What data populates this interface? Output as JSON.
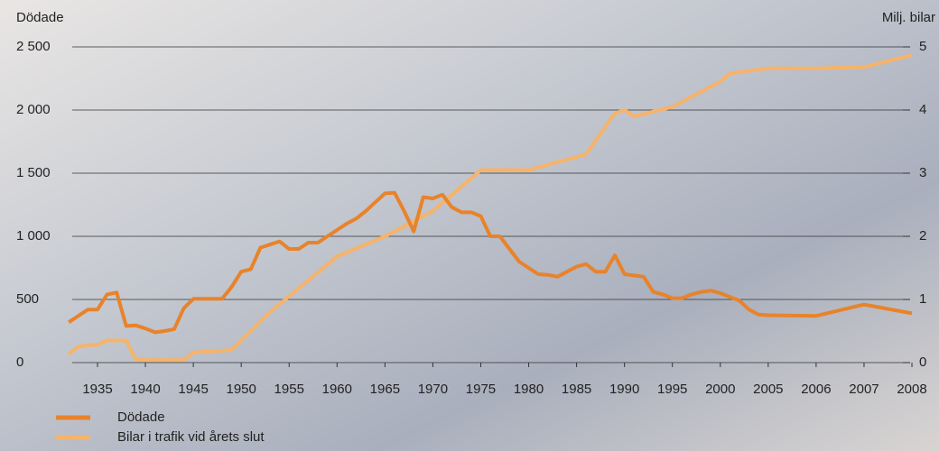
{
  "chart_data": {
    "type": "line",
    "y_label": "Dödade",
    "y2_label": "Milj. bilar",
    "xticks": [
      1935,
      1940,
      1945,
      1950,
      1955,
      1960,
      1965,
      1970,
      1975,
      1980,
      1985,
      1990,
      1995,
      2000,
      2005,
      2006,
      2007,
      2008
    ],
    "ylim": [
      0,
      2500
    ],
    "yticks": [
      0,
      500,
      {
        "value": 1000,
        "label": "1 000"
      },
      {
        "value": 1500,
        "label": "1 500"
      },
      {
        "value": 2000,
        "label": "2 000"
      },
      {
        "value": 2500,
        "label": "2 500"
      }
    ],
    "y2lim": [
      0,
      5
    ],
    "y2ticks": [
      0,
      1,
      2,
      3,
      4,
      5
    ],
    "grid": true,
    "legend": "bottom-left",
    "series": [
      {
        "name": "Dödade",
        "color": "#e8832a",
        "x": [
          1932,
          1933,
          1934,
          1935,
          1936,
          1937,
          1938,
          1939,
          1940,
          1941,
          1942,
          1943,
          1944,
          1945,
          1946,
          1947,
          1948,
          1949,
          1950,
          1951,
          1952,
          1953,
          1954,
          1955,
          1956,
          1957,
          1958,
          1959,
          1960,
          1961,
          1962,
          1963,
          1964,
          1965,
          1966,
          1967,
          1968,
          1969,
          1970,
          1971,
          1972,
          1973,
          1974,
          1975,
          1976,
          1977,
          1978,
          1979,
          1980,
          1981,
          1982,
          1983,
          1984,
          1985,
          1986,
          1987,
          1988,
          1989,
          1990,
          1991,
          1992,
          1993,
          1994,
          1995,
          1996,
          1997,
          1998,
          1999,
          2000,
          2001,
          2002,
          2003,
          2004,
          2005,
          2006,
          2007,
          2008
        ],
        "values": [
          320,
          370,
          420,
          420,
          540,
          555,
          290,
          295,
          270,
          240,
          250,
          265,
          430,
          505,
          505,
          505,
          505,
          600,
          720,
          740,
          910,
          935,
          960,
          900,
          900,
          950,
          950,
          1000,
          1050,
          1100,
          1140,
          1200,
          1270,
          1340,
          1345,
          1200,
          1040,
          1310,
          1300,
          1330,
          1230,
          1190,
          1190,
          1160,
          1000,
          1000,
          900,
          800,
          750,
          700,
          695,
          680,
          720,
          760,
          780,
          720,
          720,
          850,
          700,
          690,
          680,
          560,
          540,
          510,
          510,
          540,
          560,
          570,
          550,
          520,
          490,
          420,
          380,
          375,
          370,
          460,
          390
        ]
      },
      {
        "name": "Bilar i trafik vid årets slut",
        "color": "#f6b36a",
        "axis": "y2",
        "x": [
          1932,
          1933,
          1934,
          1935,
          1936,
          1937,
          1938,
          1939,
          1940,
          1944,
          1945,
          1948,
          1949,
          1950,
          1952,
          1953,
          1955,
          1960,
          1965,
          1970,
          1975,
          1980,
          1986,
          1989,
          1990,
          1991,
          1995,
          2000,
          2001,
          2005,
          2006,
          2007,
          2008
        ],
        "values": [
          0.14,
          0.25,
          0.28,
          0.28,
          0.35,
          0.35,
          0.35,
          0.05,
          0.04,
          0.04,
          0.16,
          0.19,
          0.2,
          0.35,
          0.65,
          0.8,
          1.05,
          1.68,
          2.0,
          2.4,
          3.05,
          3.05,
          3.3,
          3.95,
          4.0,
          3.9,
          4.05,
          4.45,
          4.58,
          4.66,
          4.66,
          4.68,
          4.87
        ]
      }
    ]
  }
}
